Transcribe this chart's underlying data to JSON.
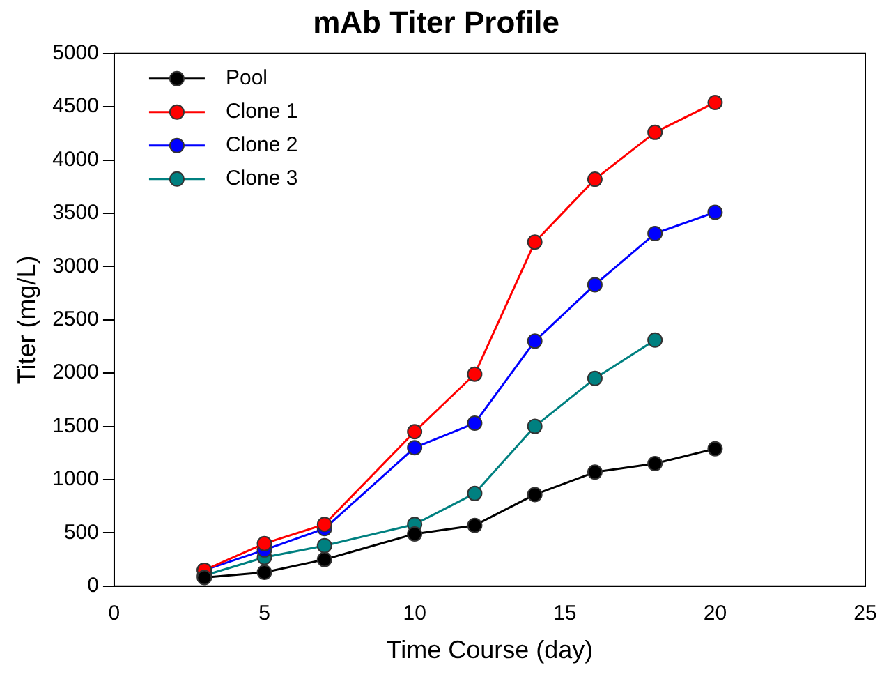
{
  "chart_data": {
    "type": "line",
    "title": "mAb Titer Profile",
    "xlabel": "Time Course (day)",
    "ylabel": "Titer (mg/L)",
    "xlim": [
      0,
      25
    ],
    "xticks": [
      0,
      5,
      10,
      15,
      20,
      25
    ],
    "ylim": [
      0,
      5000
    ],
    "yticks": [
      0,
      500,
      1000,
      1500,
      2000,
      2500,
      3000,
      3500,
      4000,
      4500,
      5000
    ],
    "grid": false,
    "legend": "top left",
    "marker": "circle",
    "line_style": "solid",
    "series": [
      {
        "name": "Pool",
        "color": "#000000",
        "x": [
          3,
          5,
          7,
          10,
          12,
          14,
          16,
          18,
          20
        ],
        "values": [
          80,
          130,
          250,
          490,
          570,
          860,
          1070,
          1150,
          1290
        ]
      },
      {
        "name": "Clone 1",
        "color": "#ff0000",
        "x": [
          3,
          5,
          7,
          10,
          12,
          14,
          16,
          18,
          20
        ],
        "values": [
          150,
          400,
          580,
          1450,
          1990,
          3230,
          3820,
          4260,
          4540
        ]
      },
      {
        "name": "Clone 2",
        "color": "#0000ff",
        "x": [
          3,
          5,
          7,
          10,
          12,
          14,
          16,
          18,
          20
        ],
        "values": [
          150,
          340,
          540,
          1300,
          1530,
          2300,
          2830,
          3310,
          3510
        ]
      },
      {
        "name": "Clone 3",
        "color": "#008080",
        "x": [
          3,
          5,
          7,
          10,
          12,
          14,
          16,
          18
        ],
        "values": [
          100,
          270,
          380,
          580,
          870,
          1500,
          1950,
          2310
        ]
      }
    ]
  }
}
